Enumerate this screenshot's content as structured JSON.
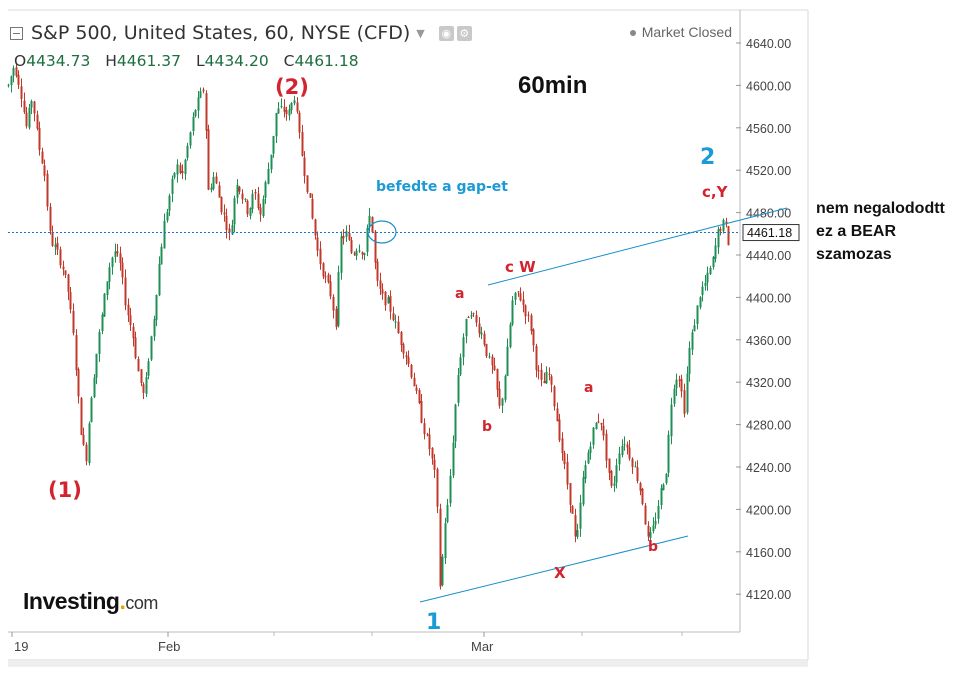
{
  "header": {
    "title": "S&P 500, United States, 60, NYSE (CFD)",
    "market_status": "Market Closed",
    "ohlc": {
      "o_label": "O",
      "o": "4434.73",
      "h_label": "H",
      "h": "4461.37",
      "l_label": "L",
      "l": "4434.20",
      "c_label": "C",
      "c": "4461.18"
    }
  },
  "logo": {
    "name": "Investing",
    "suffix": "com"
  },
  "side_note": "nem negalododtt ez a BEAR szamozas",
  "colors": {
    "up": "#1f8f55",
    "down": "#c0392b",
    "wave_red": "#d3232f",
    "wave_blue": "#1a9ad6",
    "grid": "#e6e6e6"
  },
  "chart_data": {
    "type": "candlestick",
    "title": "60min",
    "ylim": [
      4096,
      4666
    ],
    "y_ticks": [
      4120,
      4160,
      4200,
      4240,
      4280,
      4320,
      4360,
      4400,
      4440,
      4480,
      4520,
      4560,
      4600,
      4640
    ],
    "y_tick_labels": [
      "4120.00",
      "4160.00",
      "4200.00",
      "4240.00",
      "4280.00",
      "4320.00",
      "4360.00",
      "4400.00",
      "4440.00",
      "4480.00",
      "4520.00",
      "4560.00",
      "4600.00",
      "4640.00"
    ],
    "x_labels": [
      "19",
      "Feb",
      "Mar"
    ],
    "last_price": 4461.18,
    "last_price_label": "4461.18",
    "price_path": [
      [
        0,
        4600
      ],
      [
        6,
        4620
      ],
      [
        12,
        4598
      ],
      [
        18,
        4560
      ],
      [
        24,
        4590
      ],
      [
        30,
        4545
      ],
      [
        36,
        4520
      ],
      [
        42,
        4455
      ],
      [
        48,
        4445
      ],
      [
        54,
        4430
      ],
      [
        60,
        4405
      ],
      [
        66,
        4355
      ],
      [
        70,
        4305
      ],
      [
        74,
        4262
      ],
      [
        78,
        4250
      ],
      [
        82,
        4300
      ],
      [
        88,
        4345
      ],
      [
        94,
        4385
      ],
      [
        100,
        4425
      ],
      [
        106,
        4445
      ],
      [
        112,
        4430
      ],
      [
        118,
        4390
      ],
      [
        124,
        4368
      ],
      [
        130,
        4330
      ],
      [
        136,
        4305
      ],
      [
        140,
        4340
      ],
      [
        146,
        4385
      ],
      [
        150,
        4425
      ],
      [
        156,
        4470
      ],
      [
        162,
        4500
      ],
      [
        168,
        4525
      ],
      [
        174,
        4515
      ],
      [
        180,
        4545
      ],
      [
        186,
        4575
      ],
      [
        192,
        4590
      ],
      [
        196,
        4598
      ],
      [
        200,
        4500
      ],
      [
        206,
        4515
      ],
      [
        212,
        4488
      ],
      [
        218,
        4470
      ],
      [
        222,
        4455
      ],
      [
        228,
        4512
      ],
      [
        234,
        4495
      ],
      [
        240,
        4480
      ],
      [
        246,
        4500
      ],
      [
        252,
        4478
      ],
      [
        258,
        4510
      ],
      [
        264,
        4545
      ],
      [
        268,
        4575
      ],
      [
        274,
        4578
      ],
      [
        280,
        4572
      ],
      [
        286,
        4590
      ],
      [
        292,
        4545
      ],
      [
        298,
        4510
      ],
      [
        304,
        4475
      ],
      [
        310,
        4440
      ],
      [
        316,
        4420
      ],
      [
        322,
        4405
      ],
      [
        328,
        4375
      ],
      [
        332,
        4455
      ],
      [
        338,
        4460
      ],
      [
        344,
        4440
      ],
      [
        350,
        4450
      ],
      [
        356,
        4440
      ],
      [
        362,
        4485
      ],
      [
        368,
        4415
      ],
      [
        374,
        4400
      ],
      [
        380,
        4395
      ],
      [
        386,
        4378
      ],
      [
        392,
        4360
      ],
      [
        398,
        4345
      ],
      [
        404,
        4325
      ],
      [
        410,
        4300
      ],
      [
        416,
        4275
      ],
      [
        422,
        4255
      ],
      [
        428,
        4225
      ],
      [
        432,
        4118
      ],
      [
        436,
        4185
      ],
      [
        440,
        4205
      ],
      [
        446,
        4285
      ],
      [
        450,
        4330
      ],
      [
        456,
        4370
      ],
      [
        462,
        4390
      ],
      [
        468,
        4375
      ],
      [
        474,
        4365
      ],
      [
        480,
        4342
      ],
      [
        486,
        4328
      ],
      [
        492,
        4292
      ],
      [
        498,
        4338
      ],
      [
        504,
        4395
      ],
      [
        510,
        4405
      ],
      [
        516,
        4390
      ],
      [
        522,
        4375
      ],
      [
        528,
        4335
      ],
      [
        534,
        4315
      ],
      [
        540,
        4330
      ],
      [
        546,
        4300
      ],
      [
        552,
        4265
      ],
      [
        558,
        4230
      ],
      [
        564,
        4195
      ],
      [
        568,
        4162
      ],
      [
        574,
        4225
      ],
      [
        580,
        4255
      ],
      [
        586,
        4278
      ],
      [
        592,
        4288
      ],
      [
        598,
        4250
      ],
      [
        604,
        4215
      ],
      [
        610,
        4255
      ],
      [
        616,
        4265
      ],
      [
        622,
        4250
      ],
      [
        628,
        4235
      ],
      [
        634,
        4210
      ],
      [
        640,
        4168
      ],
      [
        646,
        4185
      ],
      [
        652,
        4215
      ],
      [
        658,
        4238
      ],
      [
        664,
        4315
      ],
      [
        670,
        4330
      ],
      [
        676,
        4295
      ],
      [
        680,
        4345
      ],
      [
        686,
        4375
      ],
      [
        692,
        4405
      ],
      [
        698,
        4415
      ],
      [
        704,
        4432
      ],
      [
        710,
        4462
      ],
      [
        714,
        4470
      ],
      [
        718,
        4465
      ],
      [
        722,
        4442
      ],
      [
        726,
        4438
      ],
      [
        730,
        4461
      ]
    ],
    "annotations": {
      "wave_1": "(1)",
      "wave_2": "(2)",
      "wave_one": "1",
      "wave_two": "2",
      "a1": "a",
      "b1": "b",
      "cw": "c W",
      "x": "X",
      "a2": "a",
      "b2": "b",
      "cy": "c,Y",
      "gap_note": "befedte a gap-et"
    }
  }
}
